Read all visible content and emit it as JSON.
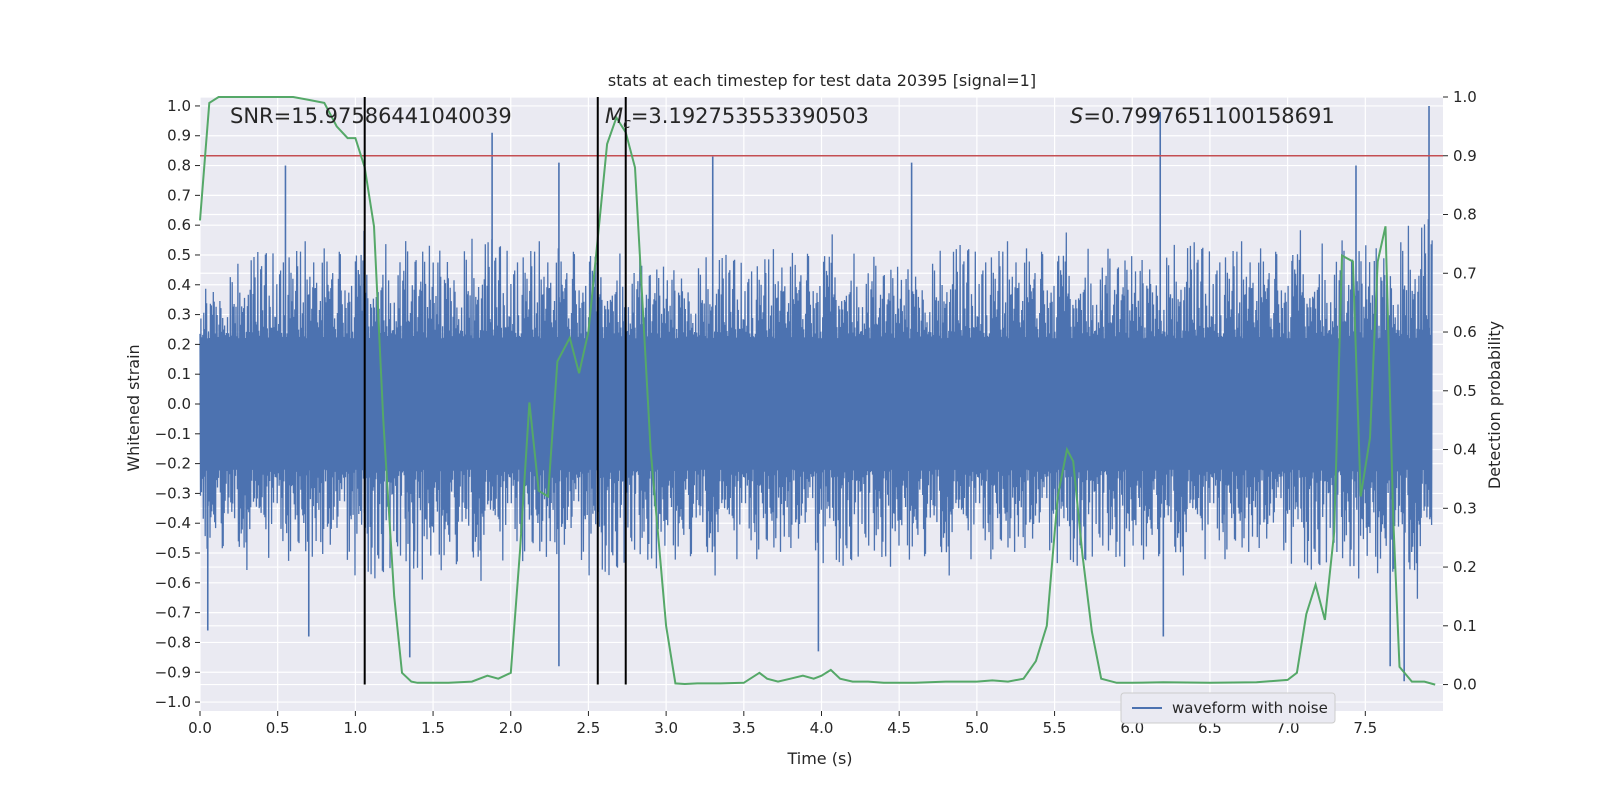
{
  "chart_data": {
    "type": "line",
    "title": "stats at each timestep for test data 20395 [signal=1]",
    "xlabel": "Time (s)",
    "ylabel_left": "Whitened strain",
    "ylabel_right": "Detection probability",
    "xlim": [
      0.0,
      8.0
    ],
    "ylim_left": [
      -1.03,
      1.03
    ],
    "ylim_right": [
      -0.045,
      1.0
    ],
    "x_ticks": [
      "0.0",
      "0.5",
      "1.0",
      "1.5",
      "2.0",
      "2.5",
      "3.0",
      "3.5",
      "4.0",
      "4.5",
      "5.0",
      "5.5",
      "6.0",
      "6.5",
      "7.0",
      "7.5"
    ],
    "y_left_ticks": [
      "1.0",
      "0.9",
      "0.8",
      "0.7",
      "0.6",
      "0.5",
      "0.4",
      "0.3",
      "0.2",
      "0.1",
      "0.0",
      "−0.1",
      "−0.2",
      "−0.3",
      "−0.4",
      "−0.5",
      "−0.6",
      "−0.7",
      "−0.8",
      "−0.9",
      "−1.0"
    ],
    "y_right_ticks": [
      "1.0",
      "0.9",
      "0.8",
      "0.7",
      "0.6",
      "0.5",
      "0.4",
      "0.3",
      "0.2",
      "0.1",
      "0.0"
    ],
    "grid": true,
    "legend": {
      "position": "lower-right",
      "entries": [
        "waveform with noise"
      ]
    },
    "annotations": {
      "snr": "SNR=15.97586441040039",
      "mc": "=3.192753553390503",
      "s": "=0.7997651100158691",
      "mc_symbol": "M",
      "mc_sub": "c",
      "s_symbol": "S"
    },
    "colors": {
      "waveform": "#4c72b0",
      "probability": "#55a868",
      "threshold": "#c44e52",
      "markers": "#000000",
      "background": "#eaeaf2"
    },
    "threshold": 0.9,
    "vertical_lines_x": [
      1.06,
      2.56,
      2.74
    ],
    "waveform_envelope": {
      "x": [
        0.0,
        0.5,
        1.0,
        1.5,
        2.0,
        2.5,
        3.0,
        3.5,
        4.0,
        4.5,
        5.0,
        5.5,
        6.0,
        6.5,
        7.0,
        7.5,
        8.0
      ],
      "max": [
        0.45,
        0.6,
        0.6,
        0.65,
        0.6,
        0.6,
        0.55,
        0.55,
        0.6,
        0.55,
        0.6,
        0.6,
        0.6,
        0.6,
        0.6,
        0.65,
        0.7
      ],
      "min": [
        -0.55,
        -0.6,
        -0.65,
        -0.65,
        -0.6,
        -0.65,
        -0.6,
        -0.6,
        -0.6,
        -0.6,
        -0.6,
        -0.6,
        -0.6,
        -0.6,
        -0.6,
        -0.65,
        -0.7
      ],
      "spikes": [
        [
          0.05,
          -0.76
        ],
        [
          0.55,
          0.8
        ],
        [
          0.7,
          -0.78
        ],
        [
          1.35,
          -0.85
        ],
        [
          1.88,
          0.91
        ],
        [
          2.31,
          0.81
        ],
        [
          2.31,
          -0.88
        ],
        [
          3.3,
          0.83
        ],
        [
          3.98,
          -0.83
        ],
        [
          4.58,
          0.81
        ],
        [
          6.18,
          0.98
        ],
        [
          6.2,
          -0.78
        ],
        [
          7.44,
          0.8
        ],
        [
          7.66,
          -0.88
        ],
        [
          7.75,
          -0.93
        ],
        [
          7.91,
          1.0
        ]
      ]
    },
    "probability_series": {
      "name": "",
      "x": [
        0.0,
        0.06,
        0.12,
        0.2,
        0.3,
        0.4,
        0.5,
        0.6,
        0.7,
        0.8,
        0.88,
        0.95,
        1.0,
        1.06,
        1.12,
        1.18,
        1.25,
        1.3,
        1.36,
        1.4,
        1.5,
        1.6,
        1.75,
        1.85,
        1.92,
        2.0,
        2.06,
        2.12,
        2.18,
        2.24,
        2.3,
        2.38,
        2.44,
        2.5,
        2.56,
        2.62,
        2.68,
        2.74,
        2.8,
        2.9,
        3.0,
        3.06,
        3.12,
        3.2,
        3.35,
        3.5,
        3.6,
        3.65,
        3.72,
        3.8,
        3.88,
        3.95,
        4.0,
        4.06,
        4.12,
        4.2,
        4.3,
        4.4,
        4.6,
        4.8,
        5.0,
        5.1,
        5.2,
        5.3,
        5.38,
        5.45,
        5.52,
        5.58,
        5.62,
        5.68,
        5.74,
        5.8,
        5.9,
        6.0,
        6.2,
        6.5,
        6.8,
        7.0,
        7.06,
        7.12,
        7.18,
        7.24,
        7.3,
        7.35,
        7.42,
        7.47,
        7.53,
        7.58,
        7.63,
        7.68,
        7.72,
        7.8,
        7.88,
        7.95
      ],
      "y": [
        0.79,
        0.99,
        1.0,
        1.0,
        1.0,
        1.0,
        1.0,
        1.0,
        0.995,
        0.99,
        0.95,
        0.93,
        0.93,
        0.88,
        0.78,
        0.45,
        0.15,
        0.02,
        0.005,
        0.003,
        0.003,
        0.003,
        0.005,
        0.015,
        0.01,
        0.02,
        0.23,
        0.48,
        0.33,
        0.32,
        0.55,
        0.59,
        0.53,
        0.6,
        0.76,
        0.92,
        0.965,
        0.94,
        0.88,
        0.4,
        0.1,
        0.002,
        0.001,
        0.002,
        0.002,
        0.003,
        0.02,
        0.01,
        0.005,
        0.01,
        0.015,
        0.01,
        0.015,
        0.025,
        0.01,
        0.005,
        0.005,
        0.003,
        0.003,
        0.005,
        0.005,
        0.007,
        0.005,
        0.01,
        0.04,
        0.1,
        0.32,
        0.4,
        0.38,
        0.22,
        0.09,
        0.01,
        0.003,
        0.003,
        0.004,
        0.003,
        0.004,
        0.008,
        0.02,
        0.12,
        0.17,
        0.11,
        0.26,
        0.73,
        0.72,
        0.32,
        0.42,
        0.72,
        0.78,
        0.28,
        0.03,
        0.005,
        0.005,
        0.0
      ]
    }
  }
}
